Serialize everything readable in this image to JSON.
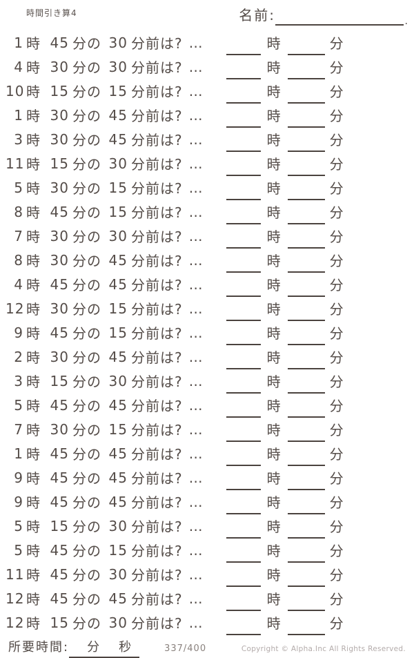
{
  "header": {
    "title": "時間引き算4",
    "name_label": "名前:"
  },
  "labels": {
    "hour_unit": "時",
    "minute_of_unit": "分の",
    "before_question": "分前は?",
    "dots": "…",
    "answer_hour_unit": "時",
    "answer_minute_unit": "分"
  },
  "problems": [
    {
      "hour": "1",
      "minute": "45",
      "delta": "30"
    },
    {
      "hour": "4",
      "minute": "30",
      "delta": "30"
    },
    {
      "hour": "10",
      "minute": "15",
      "delta": "15"
    },
    {
      "hour": "1",
      "minute": "30",
      "delta": "45"
    },
    {
      "hour": "3",
      "minute": "30",
      "delta": "45"
    },
    {
      "hour": "11",
      "minute": "15",
      "delta": "30"
    },
    {
      "hour": "5",
      "minute": "30",
      "delta": "15"
    },
    {
      "hour": "8",
      "minute": "45",
      "delta": "15"
    },
    {
      "hour": "7",
      "minute": "30",
      "delta": "30"
    },
    {
      "hour": "8",
      "minute": "30",
      "delta": "45"
    },
    {
      "hour": "4",
      "minute": "45",
      "delta": "45"
    },
    {
      "hour": "12",
      "minute": "30",
      "delta": "15"
    },
    {
      "hour": "9",
      "minute": "45",
      "delta": "15"
    },
    {
      "hour": "2",
      "minute": "30",
      "delta": "45"
    },
    {
      "hour": "3",
      "minute": "15",
      "delta": "30"
    },
    {
      "hour": "5",
      "minute": "45",
      "delta": "45"
    },
    {
      "hour": "7",
      "minute": "30",
      "delta": "15"
    },
    {
      "hour": "1",
      "minute": "45",
      "delta": "45"
    },
    {
      "hour": "9",
      "minute": "45",
      "delta": "45"
    },
    {
      "hour": "9",
      "minute": "45",
      "delta": "45"
    },
    {
      "hour": "5",
      "minute": "15",
      "delta": "30"
    },
    {
      "hour": "5",
      "minute": "45",
      "delta": "15"
    },
    {
      "hour": "11",
      "minute": "45",
      "delta": "30"
    },
    {
      "hour": "12",
      "minute": "45",
      "delta": "45"
    },
    {
      "hour": "12",
      "minute": "15",
      "delta": "30"
    }
  ],
  "footer": {
    "elapsed_label": "所要時間:",
    "elapsed_minute_unit": "分",
    "elapsed_second_unit": "秒",
    "progress": "337/400",
    "copyright": "Copyright ©  Alpha.Inc All Rights Reserved."
  },
  "colors": {
    "text": "#544c48",
    "line": "#4a423e",
    "progress_text": "#8a827e",
    "copyright_text": "#b3abaa"
  }
}
